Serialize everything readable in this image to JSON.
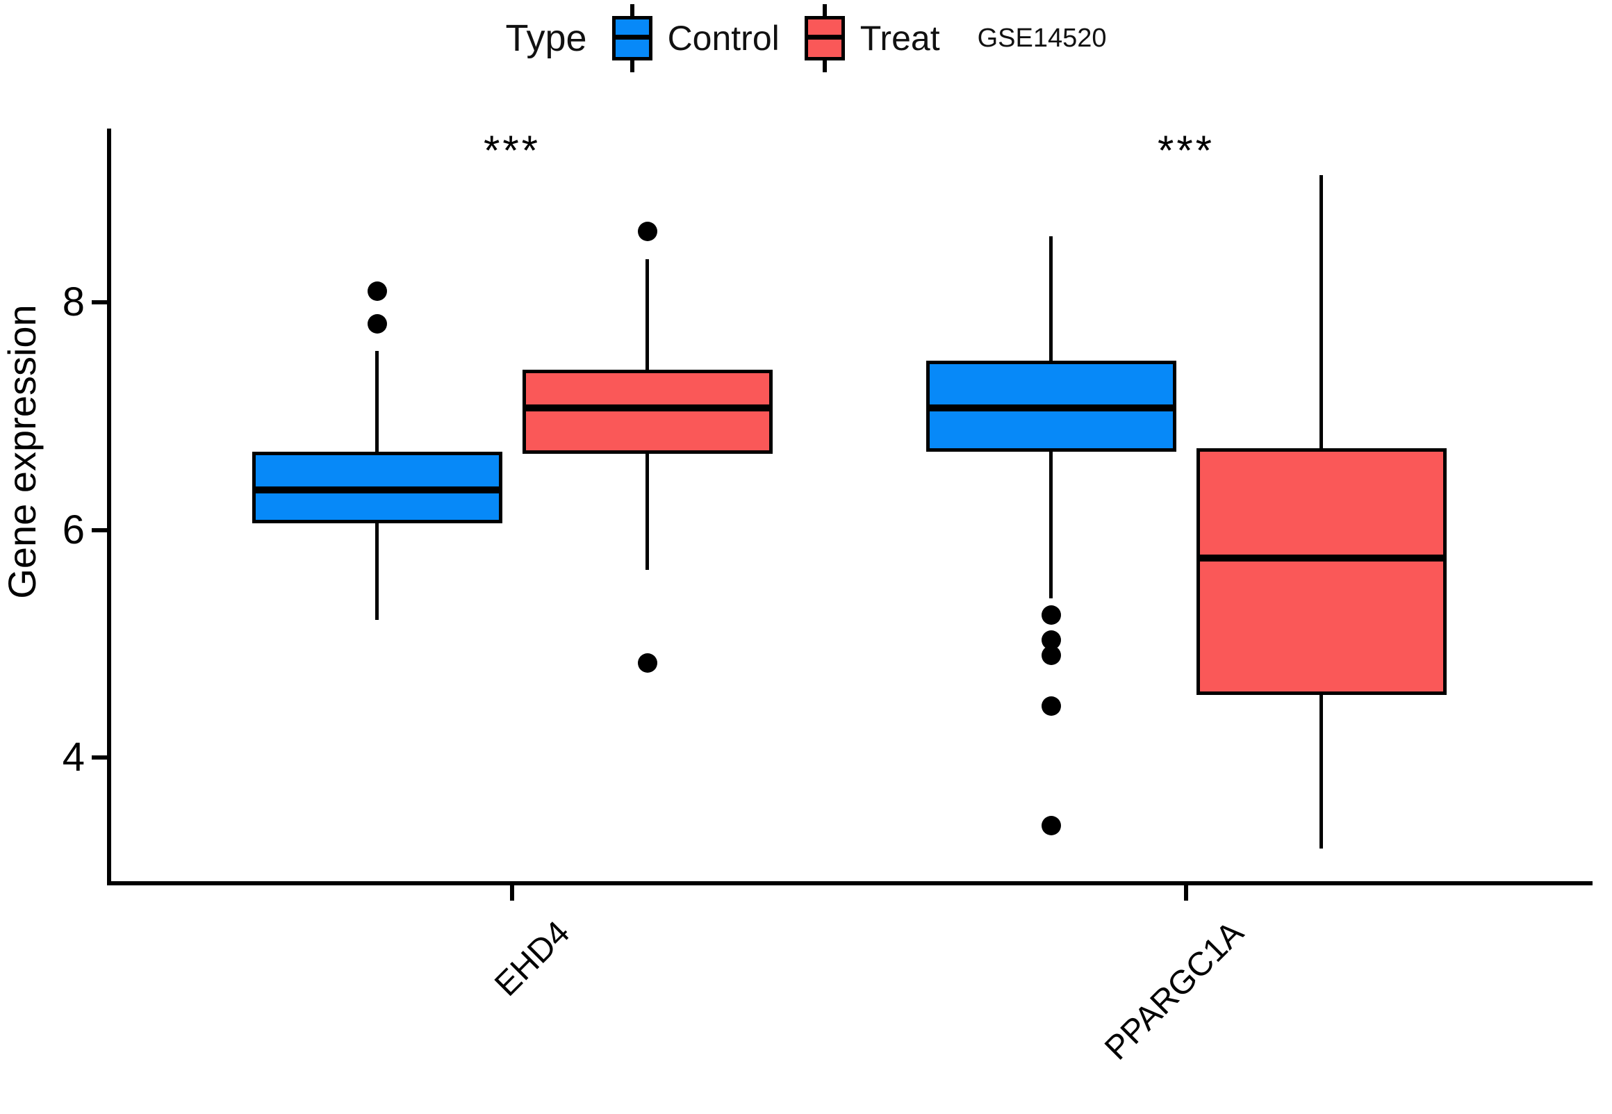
{
  "page": {
    "background": "#ffffff"
  },
  "legend": {
    "title": "Type",
    "items": [
      {
        "label": "Control",
        "color": "#0789F8"
      },
      {
        "label": "Treat",
        "color": "#FA5858"
      }
    ],
    "annotation": "GSE14520"
  },
  "chart_data": {
    "type": "boxplot",
    "title": "",
    "xlabel": "",
    "ylabel": "Gene expression",
    "categories": [
      "EHD4",
      "PPARGC1A"
    ],
    "y_ticks": [
      8,
      6,
      4
    ],
    "ylim": [
      2.9,
      9.55
    ],
    "grid": "off",
    "legend_position": "top",
    "series": [
      {
        "name": "Control",
        "color": "#0789F8",
        "boxes": [
          {
            "gene": "EHD4",
            "whisker_low": 5.21,
            "q1": 6.06,
            "median": 6.35,
            "q3": 6.69,
            "whisker_high": 7.57,
            "outliers": [
              7.81,
              8.1
            ]
          },
          {
            "gene": "PPARGC1A",
            "whisker_low": 5.4,
            "q1": 6.69,
            "median": 7.07,
            "q3": 7.49,
            "whisker_high": 8.58,
            "outliers": [
              5.25,
              5.03,
              4.9,
              4.45,
              3.4
            ]
          }
        ]
      },
      {
        "name": "Treat",
        "color": "#FA5858",
        "boxes": [
          {
            "gene": "EHD4",
            "whisker_low": 5.65,
            "q1": 6.67,
            "median": 7.07,
            "q3": 7.41,
            "whisker_high": 8.38,
            "outliers": [
              8.62,
              4.83
            ]
          },
          {
            "gene": "PPARGC1A",
            "whisker_low": 3.2,
            "q1": 4.55,
            "median": 5.75,
            "q3": 6.72,
            "whisker_high": 9.12,
            "outliers": []
          }
        ]
      }
    ],
    "significance": [
      {
        "gene": "EHD4",
        "label": "***"
      },
      {
        "gene": "PPARGC1A",
        "label": "***"
      }
    ]
  }
}
